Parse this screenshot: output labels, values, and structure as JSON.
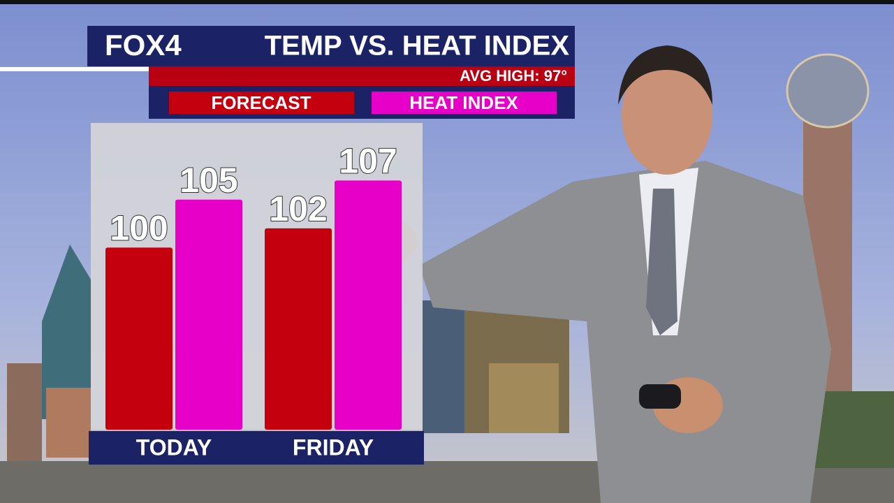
{
  "chart_data": {
    "type": "bar",
    "logo": "FOX4",
    "title": "TEMP VS. HEAT INDEX",
    "subtitle": "AVG HIGH: 97°",
    "categories": [
      "TODAY",
      "FRIDAY"
    ],
    "series": [
      {
        "name": "FORECAST",
        "color": "#c4000f",
        "values": [
          100,
          102
        ]
      },
      {
        "name": "HEAT INDEX",
        "color": "#e600c8",
        "values": [
          105,
          107
        ]
      }
    ],
    "ylim": [
      81,
      113
    ]
  }
}
